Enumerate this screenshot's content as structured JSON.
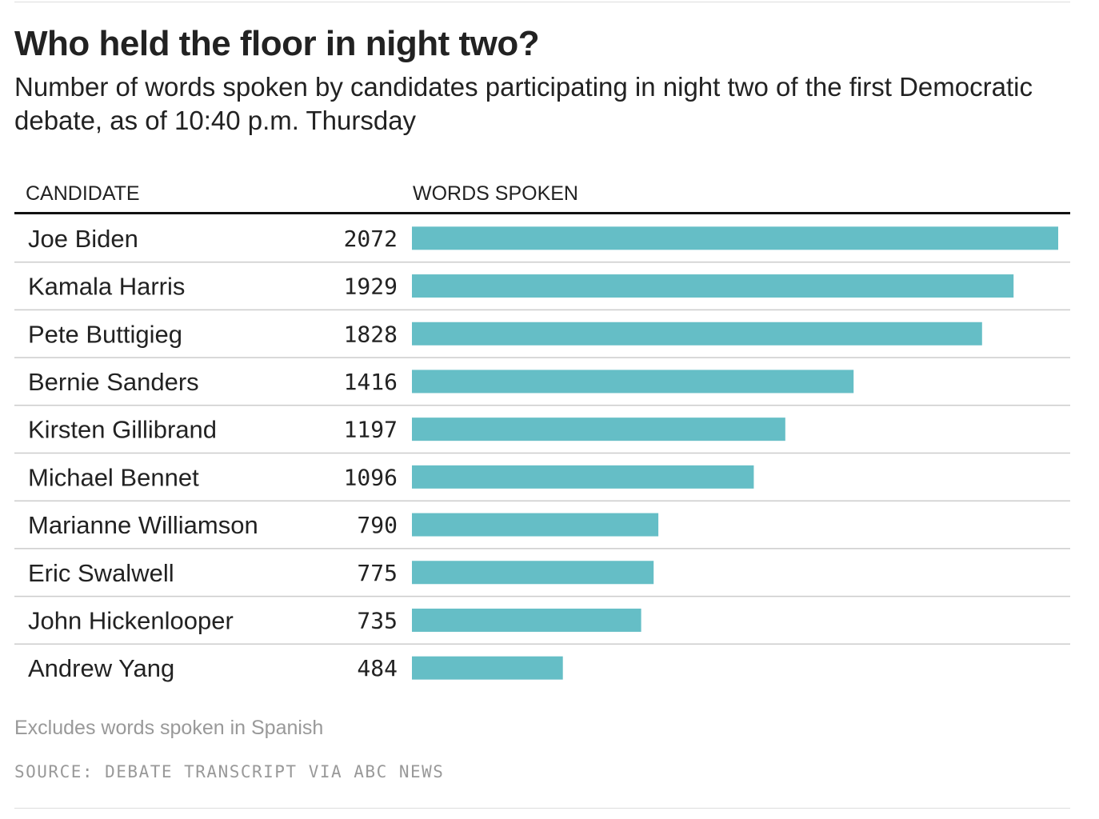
{
  "title": "Who held the floor in night two?",
  "subtitle": "Number of words spoken by candidates participating in night two of the first Democratic debate, as of 10:40 p.m. Thursday",
  "columns": {
    "candidate": "CANDIDATE",
    "words": "WORDS SPOKEN"
  },
  "note": "Excludes words spoken in Spanish",
  "source": "SOURCE: DEBATE TRANSCRIPT VIA ABC NEWS",
  "colors": {
    "bar": "#65bec6",
    "row_rule": "#cccccc",
    "text": "#222222",
    "muted": "#999999"
  },
  "chart_data": {
    "type": "bar",
    "orientation": "horizontal",
    "title": "Who held the floor in night two?",
    "xlabel": "WORDS SPOKEN",
    "ylabel": "CANDIDATE",
    "xlim": [
      0,
      2072
    ],
    "grid": false,
    "legend": "none",
    "categories": [
      "Joe Biden",
      "Kamala Harris",
      "Pete Buttigieg",
      "Bernie Sanders",
      "Kirsten Gillibrand",
      "Michael Bennet",
      "Marianne Williamson",
      "Eric Swalwell",
      "John Hickenlooper",
      "Andrew Yang"
    ],
    "values": [
      2072,
      1929,
      1828,
      1416,
      1197,
      1096,
      790,
      775,
      735,
      484
    ]
  }
}
